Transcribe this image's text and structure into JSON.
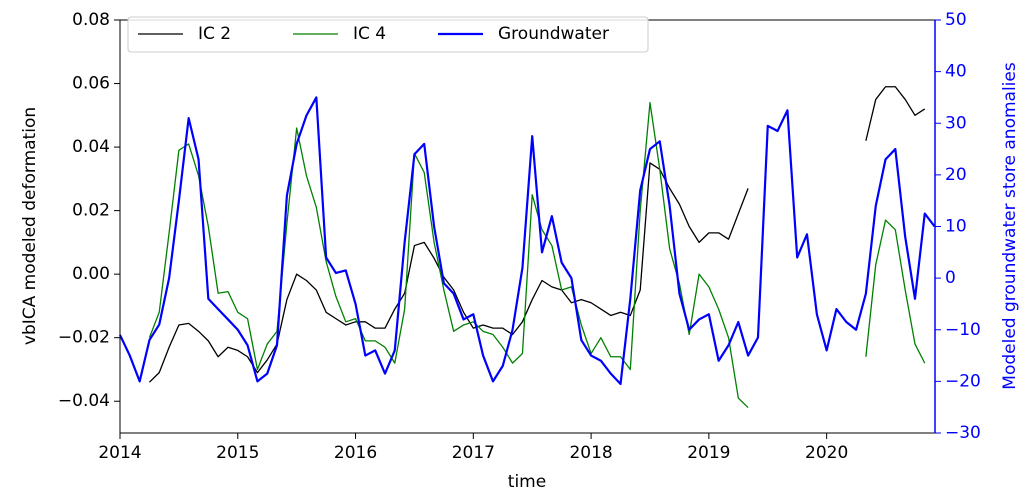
{
  "chart_data": {
    "type": "line",
    "xlabel": "time",
    "ylabel": "vbICA modeled deformation",
    "y2label": "Modeled groundwater store anomalies",
    "x": [
      2014,
      2014.083,
      2014.167,
      2014.25,
      2014.333,
      2014.417,
      2014.5,
      2014.583,
      2014.667,
      2014.75,
      2014.833,
      2014.917,
      2015,
      2015.083,
      2015.167,
      2015.25,
      2015.333,
      2015.417,
      2015.5,
      2015.583,
      2015.667,
      2015.75,
      2015.833,
      2015.917,
      2016,
      2016.083,
      2016.167,
      2016.25,
      2016.333,
      2016.417,
      2016.5,
      2016.583,
      2016.667,
      2016.75,
      2016.833,
      2016.917,
      2017,
      2017.083,
      2017.167,
      2017.25,
      2017.333,
      2017.417,
      2017.5,
      2017.583,
      2017.667,
      2017.75,
      2017.833,
      2017.917,
      2018,
      2018.083,
      2018.167,
      2018.25,
      2018.333,
      2018.417,
      2018.5,
      2018.583,
      2018.667,
      2018.75,
      2018.833,
      2018.917,
      2019,
      2019.083,
      2019.167,
      2019.25,
      2019.333,
      2019.417,
      2019.5,
      2019.583,
      2019.667,
      2019.75,
      2019.833,
      2019.917,
      2020,
      2020.083,
      2020.167,
      2020.25,
      2020.333,
      2020.417,
      2020.5,
      2020.583,
      2020.667,
      2020.75,
      2020.833,
      2020.917
    ],
    "series": [
      {
        "name": "IC 2",
        "color": "#000000",
        "width": 1.3,
        "values": [
          null,
          null,
          null,
          -0.034,
          -0.031,
          -0.023,
          -0.016,
          -0.0155,
          -0.018,
          -0.021,
          -0.026,
          -0.023,
          -0.024,
          -0.026,
          -0.031,
          -0.027,
          -0.022,
          -0.008,
          0.0,
          -0.002,
          -0.005,
          -0.012,
          -0.014,
          -0.016,
          -0.015,
          -0.015,
          -0.017,
          -0.017,
          -0.011,
          -0.006,
          0.009,
          0.01,
          0.005,
          -0.001,
          -0.005,
          -0.012,
          -0.017,
          -0.016,
          -0.017,
          -0.017,
          -0.019,
          -0.015,
          -0.008,
          -0.002,
          -0.004,
          -0.005,
          -0.009,
          -0.008,
          -0.009,
          -0.011,
          -0.013,
          -0.012,
          -0.013,
          -0.005,
          0.035,
          0.033,
          0.027,
          0.022,
          0.015,
          0.01,
          0.013,
          0.013,
          0.011,
          0.019,
          0.027,
          null,
          null,
          null,
          null,
          null,
          null,
          null,
          null,
          null,
          null,
          null,
          0.042,
          0.055,
          0.059,
          0.059,
          0.055,
          0.05,
          0.052,
          null
        ]
      },
      {
        "name": "IC 4",
        "color": "#008000",
        "width": 1.3,
        "values": [
          null,
          null,
          null,
          -0.02,
          -0.012,
          0.013,
          0.039,
          0.041,
          0.031,
          0.015,
          -0.006,
          -0.0055,
          -0.012,
          -0.014,
          -0.03,
          -0.022,
          -0.018,
          0.016,
          0.046,
          0.031,
          0.021,
          0.004,
          -0.007,
          -0.015,
          -0.014,
          -0.021,
          -0.021,
          -0.023,
          -0.028,
          -0.011,
          0.038,
          0.032,
          0.01,
          -0.005,
          -0.018,
          -0.016,
          -0.015,
          -0.018,
          -0.019,
          -0.023,
          -0.028,
          -0.025,
          0.025,
          0.014,
          0.009,
          -0.005,
          -0.004,
          -0.016,
          -0.025,
          -0.02,
          -0.026,
          -0.026,
          -0.03,
          0.02,
          0.054,
          0.033,
          0.008,
          -0.003,
          -0.019,
          0.0,
          -0.004,
          -0.011,
          -0.02,
          -0.039,
          -0.042,
          null,
          null,
          null,
          null,
          null,
          null,
          null,
          null,
          null,
          null,
          null,
          -0.026,
          0.003,
          0.017,
          0.014,
          -0.005,
          -0.022,
          -0.028,
          null
        ]
      },
      {
        "name": "Groundwater",
        "color": "#0000ff",
        "width": 2.2,
        "axis": "y2",
        "values": [
          -11,
          -15,
          -20,
          -12,
          -9,
          0,
          15,
          31,
          23,
          -4,
          -6,
          -8,
          -10,
          -13,
          -20,
          -18.5,
          -13,
          16,
          26,
          31.5,
          35,
          4,
          1,
          1.5,
          -5,
          -15,
          -14,
          -18.5,
          -14,
          7,
          24,
          26,
          10,
          -1,
          -3,
          -8,
          -7,
          -15,
          -20,
          -17,
          -10,
          2,
          27.5,
          5,
          12,
          3,
          0,
          -12,
          -15,
          -16,
          -18.5,
          -20.5,
          -4,
          17,
          25,
          26.5,
          14,
          -3,
          -10,
          -8,
          -7,
          -16,
          -13,
          -8.5,
          -15,
          -11.5,
          29.5,
          28.5,
          32.5,
          4,
          8.5,
          -7,
          -14,
          -6,
          -8.5,
          -10,
          -3,
          14,
          23,
          25,
          8,
          -4,
          12.5,
          10
        ]
      }
    ],
    "xlim": [
      2014,
      2020.92
    ],
    "xticks": [
      2014,
      2015,
      2016,
      2017,
      2018,
      2019,
      2020
    ],
    "ylim": [
      -0.05,
      0.08
    ],
    "yticks": [
      {
        "value": -0.04,
        "label": "−0.04"
      },
      {
        "value": -0.02,
        "label": "−0.02"
      },
      {
        "value": 0,
        "label": "0.00"
      },
      0.02,
      0.04,
      0.06,
      0.08
    ],
    "y2lim": [
      -30,
      50
    ],
    "y2ticks": [
      {
        "value": -30,
        "label": "−30"
      },
      {
        "value": -20,
        "label": "−20"
      },
      {
        "value": -10,
        "label": "−10"
      },
      0,
      10,
      20,
      30,
      40,
      50
    ],
    "legend": "upper left",
    "grid": false
  }
}
